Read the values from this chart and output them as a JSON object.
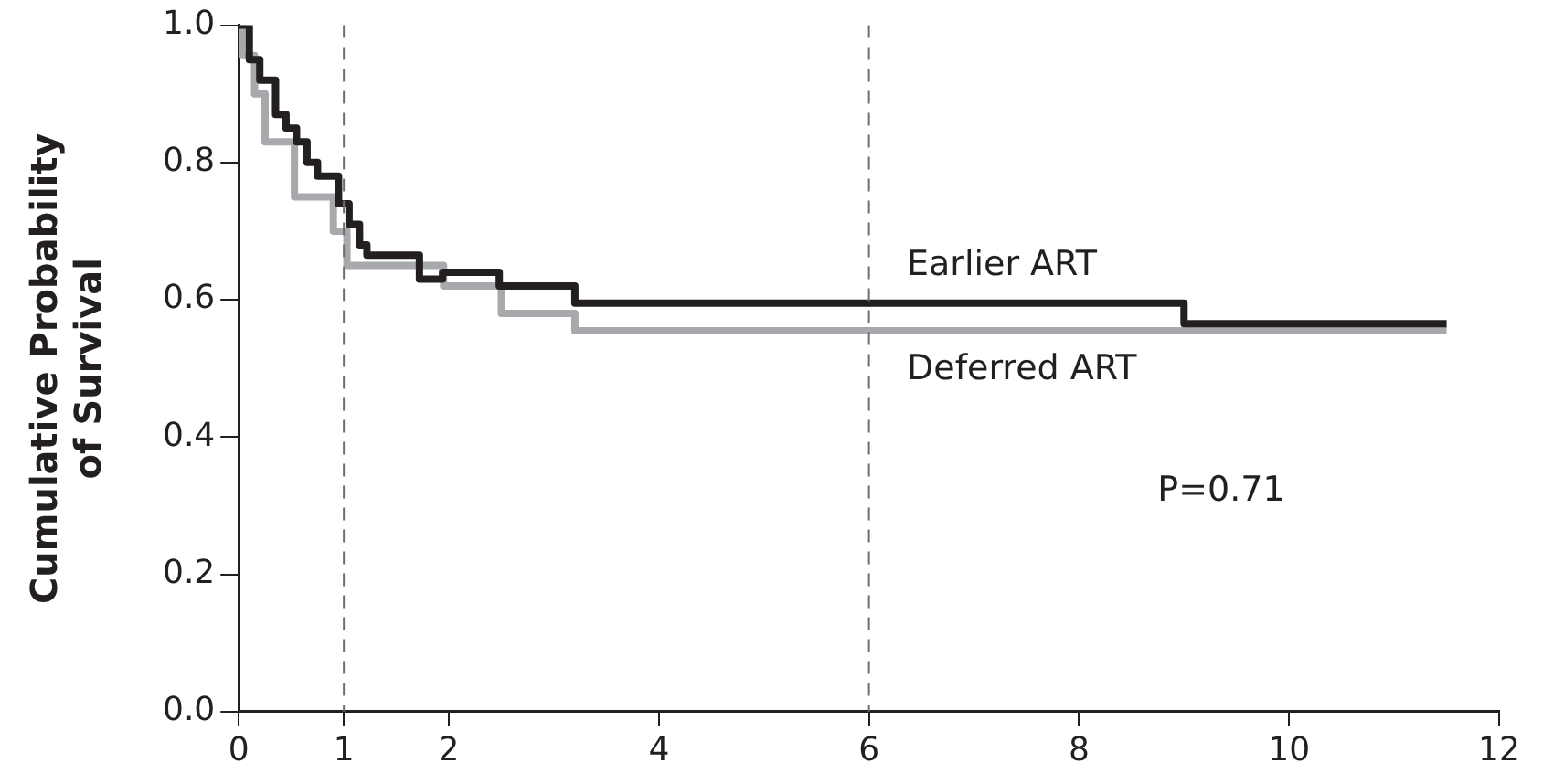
{
  "chart_data": {
    "type": "step",
    "ylabel": "Cumulative Probability\nof Survival",
    "xlim": [
      0,
      12
    ],
    "xticks": [
      0,
      1,
      2,
      4,
      6,
      8,
      10,
      12
    ],
    "ylim": [
      0,
      1
    ],
    "yticks": [
      {
        "value": 0,
        "label": "0.0"
      },
      {
        "value": 0.2,
        "label": "0.2"
      },
      {
        "value": 0.4,
        "label": "0.4"
      },
      {
        "value": 0.6,
        "label": "0.6"
      },
      {
        "value": 0.8,
        "label": "0.8"
      },
      {
        "value": 1,
        "label": "1.0"
      }
    ],
    "grid": false,
    "legend": false,
    "marker": "none",
    "line_style": "solid",
    "series": [
      {
        "name": "Earlier ART",
        "color": "#231f20",
        "x": [
          0,
          0.1,
          0.2,
          0.35,
          0.45,
          0.55,
          0.65,
          0.75,
          0.95,
          1.05,
          1.15,
          1.22,
          1.72,
          1.94,
          2.48,
          3.2,
          9.0,
          11.5
        ],
        "values": [
          1.0,
          0.95,
          0.92,
          0.87,
          0.85,
          0.83,
          0.8,
          0.78,
          0.74,
          0.71,
          0.68,
          0.665,
          0.63,
          0.64,
          0.62,
          0.595,
          0.565,
          0.565
        ]
      },
      {
        "name": "Deferred ART",
        "color": "#a7a9ac",
        "x": [
          0,
          0.03,
          0.15,
          0.25,
          0.53,
          0.9,
          1.03,
          1.95,
          2.5,
          3.2,
          11.5
        ],
        "values": [
          1.0,
          0.956,
          0.9,
          0.83,
          0.75,
          0.7,
          0.65,
          0.62,
          0.58,
          0.555,
          0.555
        ]
      }
    ],
    "ref_lines": [
      {
        "axis": "x",
        "value": 1,
        "color": "#6d6e71",
        "line_style": "dashed"
      },
      {
        "axis": "x",
        "value": 6,
        "color": "#6d6e71",
        "line_style": "dashed"
      }
    ],
    "annotations": [
      "P=0.71"
    ]
  }
}
